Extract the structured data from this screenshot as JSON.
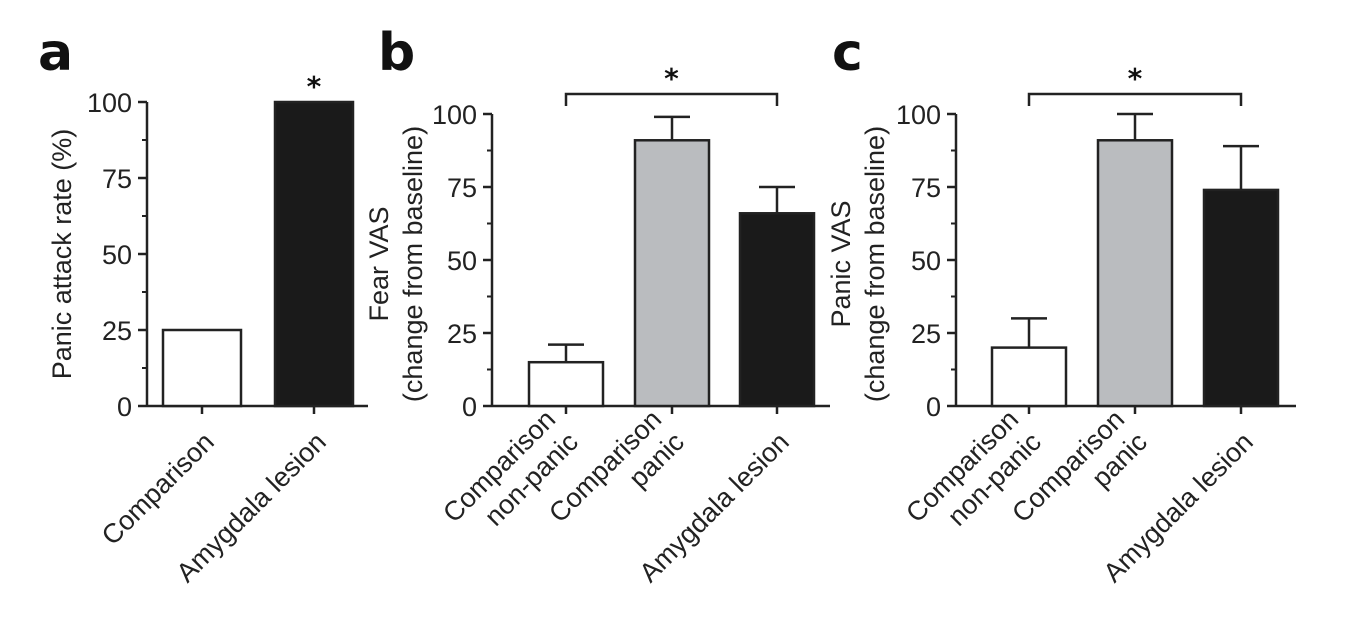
{
  "colors": {
    "white_bar": "#ffffff",
    "gray_bar": "#babcbf",
    "black_bar": "#1a1a1a",
    "ink": "#222222"
  },
  "chart_data": [
    {
      "panel": "a",
      "type": "bar",
      "categories": [
        [
          "Comparison"
        ],
        [
          "Amygdala lesion"
        ]
      ],
      "values": [
        25,
        100
      ],
      "errors": [
        null,
        null
      ],
      "fills": [
        "white_bar",
        "black_bar"
      ],
      "ylabel": [
        "Panic attack rate (%)"
      ],
      "ylim": [
        0,
        100
      ],
      "yticks": [
        "0",
        "25",
        "50",
        "75",
        "100"
      ],
      "annotations": [
        {
          "type": "star",
          "text": "*",
          "over": 1
        }
      ]
    },
    {
      "panel": "b",
      "type": "bar",
      "categories": [
        [
          "Comparison",
          "non-panic"
        ],
        [
          "Comparison",
          "panic"
        ],
        [
          "Amygdala lesion"
        ]
      ],
      "values": [
        15,
        91,
        66
      ],
      "errors": [
        6,
        8,
        9
      ],
      "fills": [
        "white_bar",
        "gray_bar",
        "black_bar"
      ],
      "ylabel": [
        "Fear VAS",
        "(change from baseline)"
      ],
      "ylim": [
        0,
        100
      ],
      "yticks": [
        "0",
        "25",
        "50",
        "75",
        "100"
      ],
      "annotations": [
        {
          "type": "bracket",
          "text": "*",
          "from": 0,
          "to": 2
        }
      ]
    },
    {
      "panel": "c",
      "type": "bar",
      "categories": [
        [
          "Comparison",
          "non-panic"
        ],
        [
          "Comparison",
          "panic"
        ],
        [
          "Amygdala lesion"
        ]
      ],
      "values": [
        20,
        91,
        74
      ],
      "errors": [
        10,
        9,
        15
      ],
      "fills": [
        "white_bar",
        "gray_bar",
        "black_bar"
      ],
      "ylabel": [
        "Panic VAS",
        "(change from baseline)"
      ],
      "ylim": [
        0,
        100
      ],
      "yticks": [
        "0",
        "25",
        "50",
        "75",
        "100"
      ],
      "annotations": [
        {
          "type": "bracket",
          "text": "*",
          "from": 0,
          "to": 2
        }
      ]
    }
  ]
}
